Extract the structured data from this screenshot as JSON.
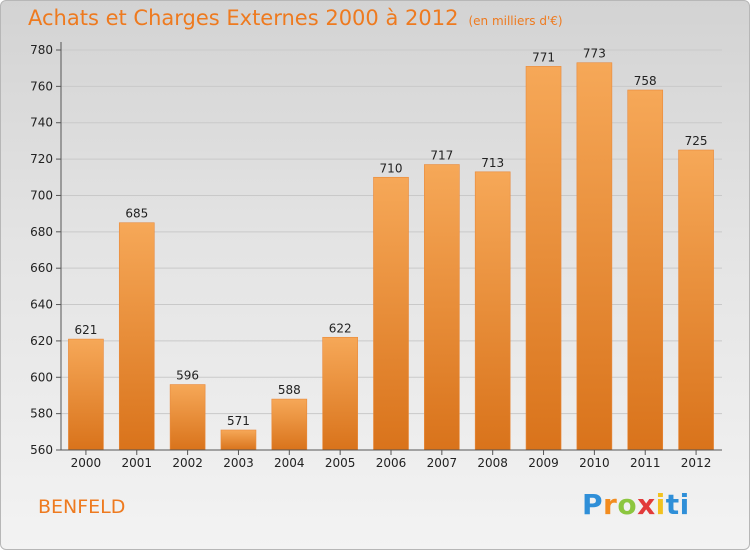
{
  "header": {
    "title": "Achats et Charges Externes 2000 à 2012",
    "unit": "(en milliers d'€)"
  },
  "footer": {
    "city": "BENFELD",
    "logo_letters": [
      "P",
      "r",
      "o",
      "x",
      "i",
      "ti"
    ]
  },
  "colors": {
    "accent": "#ee7a1f",
    "bar_top": "#f6a858",
    "bar_bottom": "#d9731b",
    "grid": "#c9c9c9",
    "axis": "#555555"
  },
  "chart_data": {
    "type": "bar",
    "title": "Achats et Charges Externes 2000 à 2012",
    "subtitle": "(en milliers d'€)",
    "xlabel": "",
    "ylabel": "",
    "categories": [
      "2000",
      "2001",
      "2002",
      "2003",
      "2004",
      "2005",
      "2006",
      "2007",
      "2008",
      "2009",
      "2010",
      "2011",
      "2012"
    ],
    "values": [
      621,
      685,
      596,
      571,
      588,
      622,
      710,
      717,
      713,
      771,
      773,
      758,
      725
    ],
    "ylim": [
      560,
      780
    ],
    "yticks": [
      560,
      580,
      600,
      620,
      640,
      660,
      680,
      700,
      720,
      740,
      760,
      780
    ],
    "grid": true,
    "legend": "none"
  }
}
